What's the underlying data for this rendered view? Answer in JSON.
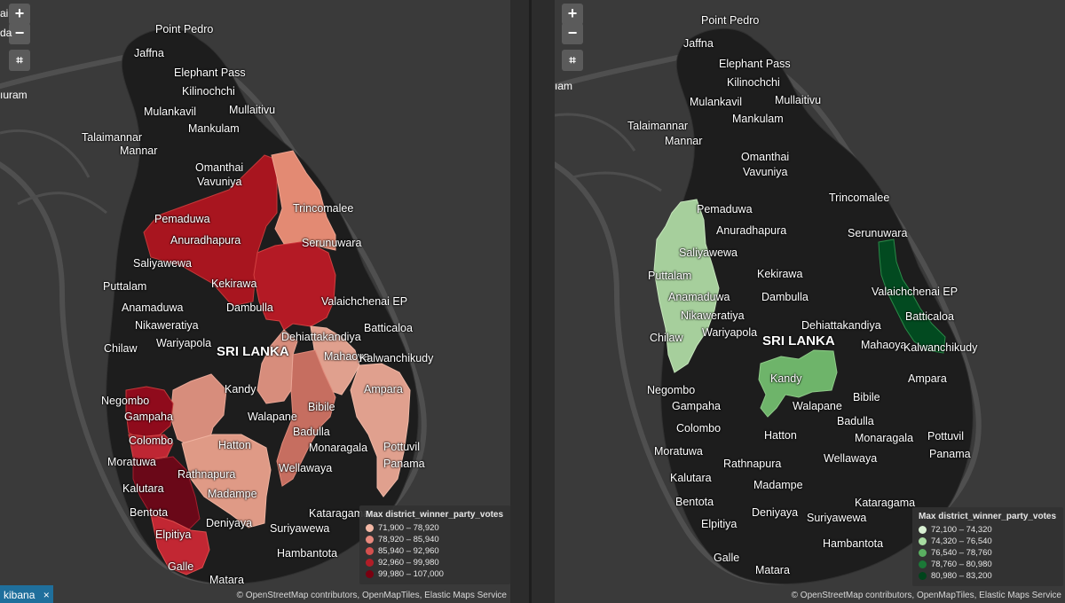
{
  "left_map": {
    "controls": {
      "zoom_in": "+",
      "zoom_out": "−",
      "fit": "⌗"
    },
    "clipped_labels": [
      "ai",
      "da",
      "ıuram"
    ],
    "places": {
      "point_pedro": "Point Pedro",
      "jaffna": "Jaffna",
      "elephant_pass": "Elephant Pass",
      "kilinochchi": "Kilinochchi",
      "mulankavil": "Mulankavil",
      "mullaitivu": "Mullaitivu",
      "talaimannar": "Talaimannar",
      "mankulam": "Mankulam",
      "mannar": "Mannar",
      "omanthai": "Omanthai",
      "vavuniya": "Vavuniya",
      "trincomalee": "Trincomalee",
      "pemaduwa": "Pemaduwa",
      "anuradhapura": "Anuradhapura",
      "serunuwara": "Serunuwara",
      "saliyawewa": "Saliyawewa",
      "kekirawa": "Kekirawa",
      "puttalam": "Puttalam",
      "dambulla": "Dambulla",
      "valaichchenai": "Valaichchenai EP",
      "anamaduwa": "Anamaduwa",
      "nikaweratiya": "Nikaweratiya",
      "dehiattakandiya": "Dehiattakandiya",
      "batticaloa": "Batticaloa",
      "wariyapola": "Wariyapola",
      "chilaw": "Chilaw",
      "sri_lanka": "SRI LANKA",
      "mahaoya": "Mahaoya",
      "kalwanchikudy": "Kalwanchikudy",
      "kandy": "Kandy",
      "ampara": "Ampara",
      "negombo": "Negombo",
      "gampaha": "Gampaha",
      "bibile": "Bibile",
      "walapane": "Walapane",
      "colombo": "Colombo",
      "badulla": "Badulla",
      "hatton": "Hatton",
      "pottuvil": "Pottuvil",
      "monaragala": "Monaragala",
      "moratuwa": "Moratuwa",
      "panama": "Panama",
      "rathnapura": "Rathnapura",
      "wellawaya": "Wellawaya",
      "kalutara": "Kalutara",
      "madampe": "Madampe",
      "bentota": "Bentota",
      "kataragama": "Kataragama",
      "deniyaya": "Deniyaya",
      "suriyawewa": "Suriyawewa",
      "elpitiya": "Elpitiya",
      "hambantota": "Hambantota",
      "galle": "Galle",
      "matara": "Matara"
    },
    "legend": {
      "title": "Max district_winner_party_votes",
      "items": [
        {
          "label": "71,900 – 78,920",
          "color": "#f4b9a6"
        },
        {
          "label": "78,920 – 85,940",
          "color": "#e98a7e"
        },
        {
          "label": "85,940 – 92,960",
          "color": "#d4504e"
        },
        {
          "label": "92,960 – 99,980",
          "color": "#b01d27"
        },
        {
          "label": "99,980 – 107,000",
          "color": "#7a0010"
        }
      ]
    },
    "attribution": "© OpenStreetMap contributors, OpenMapTiles, Elastic Maps Service",
    "app_tab": {
      "label": "kibana",
      "close": "×"
    }
  },
  "right_map": {
    "controls": {
      "zoom_in": "+",
      "zoom_out": "−",
      "fit": "⌗"
    },
    "clipped_labels": [
      "ıam"
    ],
    "places": {
      "point_pedro": "Point Pedro",
      "jaffna": "Jaffna",
      "elephant_pass": "Elephant Pass",
      "kilinochchi": "Kilinochchi",
      "mulankavil": "Mulankavil",
      "mullaitivu": "Mullaitivu",
      "talaimannar": "Talaimannar",
      "mankulam": "Mankulam",
      "mannar": "Mannar",
      "omanthai": "Omanthai",
      "vavuniya": "Vavuniya",
      "trincomalee": "Trincomalee",
      "pemaduwa": "Pemaduwa",
      "anuradhapura": "Anuradhapura",
      "serunuwara": "Serunuwara",
      "saliyawewa": "Saliyawewa",
      "kekirawa": "Kekirawa",
      "puttalam": "Puttalam",
      "dambulla": "Dambulla",
      "valaichchenai": "Valaichchenai EP",
      "anamaduwa": "Anamaduwa",
      "dehiattakandiya": "Dehiattakandiya",
      "nikaweratiya": "Nikaweratiya",
      "batticaloa": "Batticaloa",
      "wariyapola": "Wariyapola",
      "sri_lanka": "SRI LANKA",
      "chilaw": "Chilaw",
      "mahaoya": "Mahaoya",
      "kalwanchikudy": "Kalwanchikudy",
      "ampara": "Ampara",
      "kandy": "Kandy",
      "negombo": "Negombo",
      "bibile": "Bibile",
      "walapane": "Walapane",
      "gampaha": "Gampaha",
      "badulla": "Badulla",
      "colombo": "Colombo",
      "hatton": "Hatton",
      "pottuvil": "Pottuvil",
      "monaragala": "Monaragala",
      "moratuwa": "Moratuwa",
      "panama": "Panama",
      "wellawaya": "Wellawaya",
      "rathnapura": "Rathnapura",
      "kalutara": "Kalutara",
      "madampe": "Madampe",
      "bentota": "Bentota",
      "kataragama": "Kataragama",
      "deniyaya": "Deniyaya",
      "suriyawewa": "Suriyawewa",
      "elpitiya": "Elpitiya",
      "hambantota": "Hambantota",
      "galle": "Galle",
      "matara": "Matara"
    },
    "legend": {
      "title": "Max district_winner_party_votes",
      "items": [
        {
          "label": "72,100 – 74,320",
          "color": "#d9f0d3"
        },
        {
          "label": "74,320 – 76,540",
          "color": "#a6dba0"
        },
        {
          "label": "76,540 – 78,760",
          "color": "#5aae61"
        },
        {
          "label": "78,760 – 80,980",
          "color": "#1b7837"
        },
        {
          "label": "80,980 – 83,200",
          "color": "#00441b"
        }
      ]
    },
    "attribution": "© OpenStreetMap contributors, OpenMapTiles, Elastic Maps Service"
  }
}
